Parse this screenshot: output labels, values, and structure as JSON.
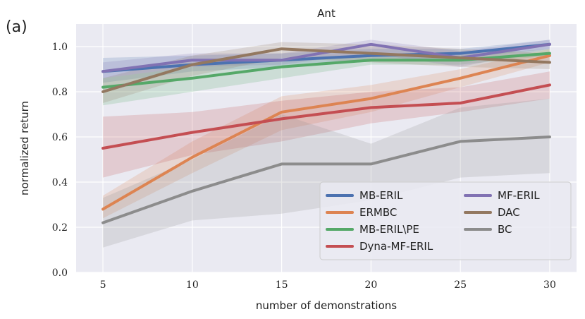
{
  "panel_label": "(a)",
  "chart_data": {
    "type": "line",
    "title": "Ant",
    "xlabel": "number of demonstrations",
    "ylabel": "normalized return",
    "x": [
      5,
      10,
      15,
      20,
      25,
      30
    ],
    "xticks": [
      "5",
      "10",
      "15",
      "20",
      "25",
      "30"
    ],
    "xlim": [
      3.5,
      31.5
    ],
    "ylim": [
      0.0,
      1.1
    ],
    "yticks": [
      "0.0",
      "0.2",
      "0.4",
      "0.6",
      "0.8",
      "1.0"
    ],
    "grid": true,
    "legend_position": "lower-right",
    "series": [
      {
        "name": "MB-ERIL",
        "color": "#4c72b0",
        "values": [
          0.89,
          0.92,
          0.94,
          0.96,
          0.97,
          1.01
        ],
        "lower": [
          0.84,
          0.89,
          0.91,
          0.94,
          0.95,
          0.99
        ],
        "upper": [
          0.95,
          0.96,
          0.97,
          0.99,
          0.99,
          1.03
        ]
      },
      {
        "name": "ERMBC",
        "color": "#dd8452",
        "values": [
          0.28,
          0.51,
          0.71,
          0.77,
          0.86,
          0.96
        ],
        "lower": [
          0.24,
          0.44,
          0.63,
          0.71,
          0.82,
          0.93
        ],
        "upper": [
          0.34,
          0.58,
          0.78,
          0.83,
          0.9,
          0.99
        ]
      },
      {
        "name": "MB-ERIL\\PE",
        "color": "#55a868",
        "values": [
          0.82,
          0.86,
          0.91,
          0.94,
          0.94,
          0.97
        ],
        "lower": [
          0.74,
          0.8,
          0.86,
          0.92,
          0.92,
          0.96
        ],
        "upper": [
          0.86,
          0.91,
          0.94,
          0.96,
          0.96,
          0.99
        ]
      },
      {
        "name": "Dyna-MF-ERIL",
        "color": "#c44e52",
        "values": [
          0.55,
          0.62,
          0.68,
          0.73,
          0.75,
          0.83
        ],
        "lower": [
          0.42,
          0.52,
          0.58,
          0.66,
          0.71,
          0.77
        ],
        "upper": [
          0.69,
          0.71,
          0.76,
          0.8,
          0.82,
          0.89
        ]
      },
      {
        "name": "MF-ERIL",
        "color": "#8172b3",
        "values": [
          0.89,
          0.94,
          0.94,
          1.01,
          0.95,
          1.01
        ],
        "lower": [
          0.86,
          0.91,
          0.92,
          0.97,
          0.91,
          0.99
        ],
        "upper": [
          0.93,
          0.97,
          0.97,
          1.03,
          0.98,
          1.03
        ]
      },
      {
        "name": "DAC",
        "color": "#937860",
        "values": [
          0.8,
          0.92,
          0.99,
          0.97,
          0.95,
          0.93
        ],
        "lower": [
          0.75,
          0.87,
          0.95,
          0.93,
          0.91,
          0.9
        ],
        "upper": [
          0.86,
          0.96,
          1.02,
          1.01,
          0.99,
          0.97
        ]
      },
      {
        "name": "BC",
        "color": "#8c8c8c",
        "values": [
          0.22,
          0.36,
          0.48,
          0.48,
          0.58,
          0.6
        ],
        "lower": [
          0.11,
          0.23,
          0.26,
          0.32,
          0.42,
          0.44
        ],
        "upper": [
          0.33,
          0.5,
          0.7,
          0.57,
          0.73,
          0.77
        ]
      }
    ]
  }
}
